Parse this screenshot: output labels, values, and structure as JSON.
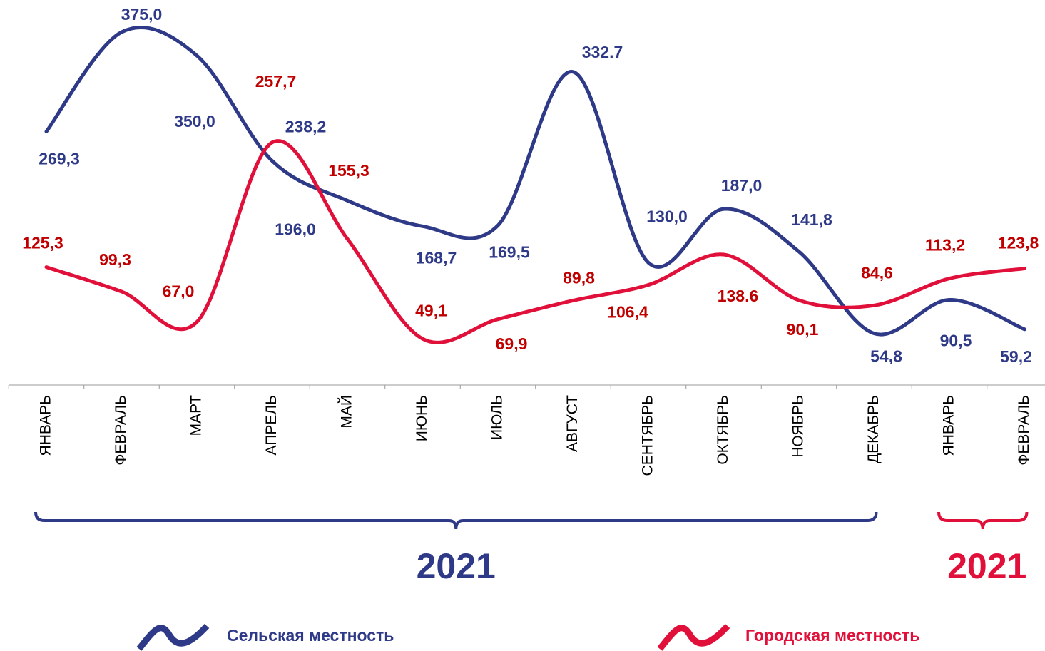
{
  "chart_data": {
    "type": "line",
    "categories": [
      "ЯНВАРЬ",
      "ФЕВРАЛЬ",
      "МАРТ",
      "АПРЕЛЬ",
      "МАЙ",
      "ИЮНЬ",
      "ИЮЛЬ",
      "АВГУСТ",
      "СЕНТЯБРЬ",
      "ОКТЯБРЬ",
      "НОЯБРЬ",
      "ДЕКАБРЬ",
      "ЯНВАРЬ",
      "ФЕВРАЛЬ"
    ],
    "series": [
      {
        "name": "Сельская местность",
        "color": "#2e3a87",
        "values": [
          269.3,
          375.0,
          350.0,
          238.2,
          196.0,
          168.7,
          169.5,
          332.7,
          130.0,
          187.0,
          141.8,
          54.8,
          90.5,
          59.2
        ],
        "value_labels": [
          "269,3",
          "375,0",
          "350,0",
          "238,2",
          "196,0",
          "168,7",
          "169,5",
          "332.7",
          "130,0",
          "187,0",
          "141,8",
          "54,8",
          "90,5",
          "59,2"
        ]
      },
      {
        "name": "Городская местность",
        "color": "#e0103a",
        "values": [
          125.3,
          99.3,
          67.0,
          257.7,
          155.3,
          49.1,
          69.9,
          89.8,
          106.4,
          138.6,
          90.1,
          84.6,
          113.2,
          123.8
        ],
        "value_labels": [
          "125,3",
          "99,3",
          "67,0",
          "257,7",
          "155,3",
          "49,1",
          "69,9",
          "89,8",
          "106,4",
          "138.6",
          "90,1",
          "84,6",
          "113,2",
          "123,8"
        ]
      }
    ],
    "ylim": [
      0,
      400
    ],
    "year_groups": [
      {
        "label": "2021",
        "from": 0,
        "to": 11,
        "color": "#2e3a87"
      },
      {
        "label": "2021",
        "from": 12,
        "to": 13,
        "color": "#e0103a"
      }
    ]
  }
}
